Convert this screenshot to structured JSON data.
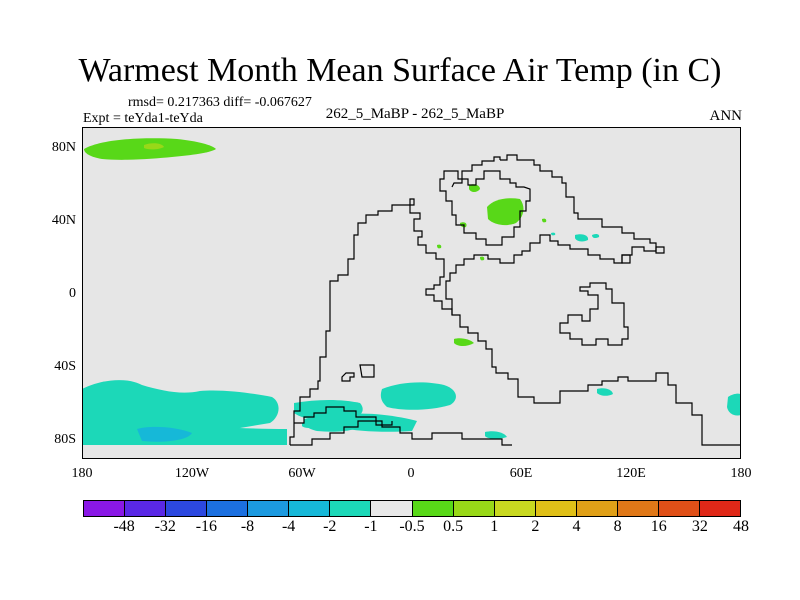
{
  "title": "Warmest Month Mean Surface Air Temp (in C)",
  "stats": "rmsd= 0.217363 diff= -0.067627",
  "expt": "Expt = teYda1-teYda",
  "center_label": "262_5_MaBP - 262_5_MaBP",
  "season": "ANN",
  "lat_labels": [
    "80N",
    "40N",
    "0",
    "40S",
    "80S"
  ],
  "lon_labels": [
    "180",
    "120W",
    "60W",
    "0",
    "60E",
    "120E",
    "180"
  ],
  "colorbar": {
    "colors": [
      "#8a18e6",
      "#5a28e6",
      "#2c48e0",
      "#1c70e0",
      "#1c9ae0",
      "#16b8d8",
      "#1cd8b8",
      "#e8e8e8",
      "#58d818",
      "#98d818",
      "#c8d820",
      "#e0c018",
      "#e0a018",
      "#e07818",
      "#e05018",
      "#e02818"
    ],
    "ticks": [
      "-48",
      "-32",
      "-16",
      "-8",
      "-4",
      "-2",
      "-1",
      "-0.5",
      "0.5",
      "1",
      "2",
      "4",
      "8",
      "16",
      "32",
      "48"
    ]
  },
  "map_colors": {
    "background": "#e6e6e6",
    "coast": "#000000",
    "cool": "#1cd8b8",
    "cool_dark": "#16b8d8",
    "warm": "#58d818",
    "warm_light": "#98d818"
  }
}
